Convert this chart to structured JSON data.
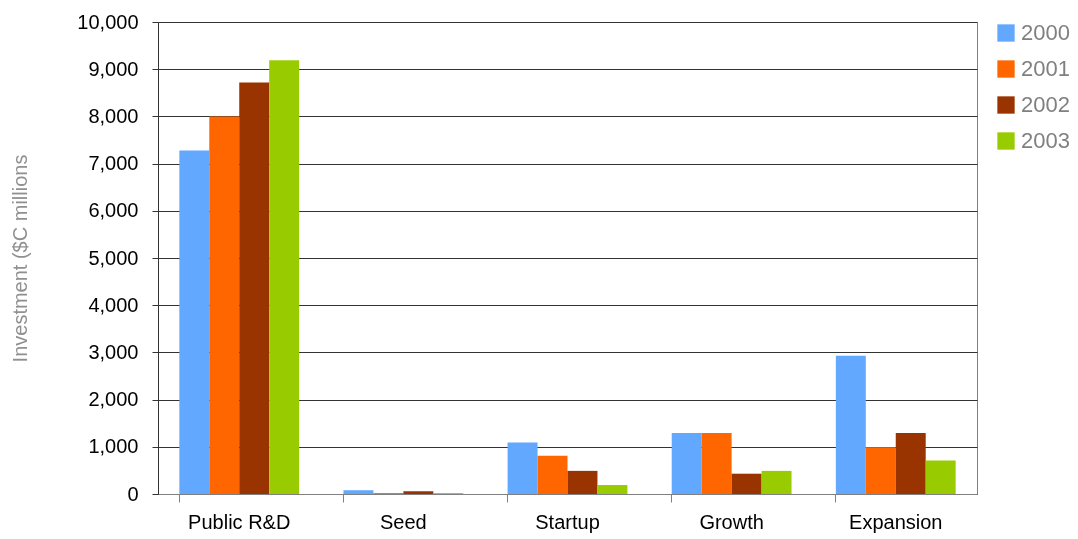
{
  "chart_data": {
    "type": "bar",
    "ylabel": "Investment ($C millions",
    "categories": [
      "Public R&D",
      "Seed",
      "Startup",
      "Growth",
      "Expansion"
    ],
    "series": [
      {
        "name": "2000",
        "color": "#62a8ff",
        "values": [
          7280,
          80,
          1090,
          1290,
          2930
        ]
      },
      {
        "name": "2001",
        "color": "#ff6600",
        "values": [
          8000,
          20,
          810,
          1290,
          990
        ]
      },
      {
        "name": "2002",
        "color": "#993300",
        "values": [
          8720,
          60,
          490,
          430,
          1290
        ]
      },
      {
        "name": "2003",
        "color": "#99cc00",
        "values": [
          9190,
          20,
          190,
          490,
          710
        ]
      }
    ],
    "ylim": [
      0,
      10000
    ],
    "yticks": [
      0,
      {
        "value": 1000,
        "label": "1,000"
      },
      {
        "value": 2000,
        "label": "2,000"
      },
      {
        "value": 3000,
        "label": "3,000"
      },
      {
        "value": 4000,
        "label": "4,000"
      },
      {
        "value": 5000,
        "label": "5,000"
      },
      {
        "value": 6000,
        "label": "6,000"
      },
      {
        "value": 7000,
        "label": "7,000"
      },
      {
        "value": 8000,
        "label": "8,000"
      },
      {
        "value": 9000,
        "label": "9,000"
      },
      {
        "value": 10000,
        "label": "10,000"
      }
    ],
    "grid": "y",
    "legend": "right"
  }
}
